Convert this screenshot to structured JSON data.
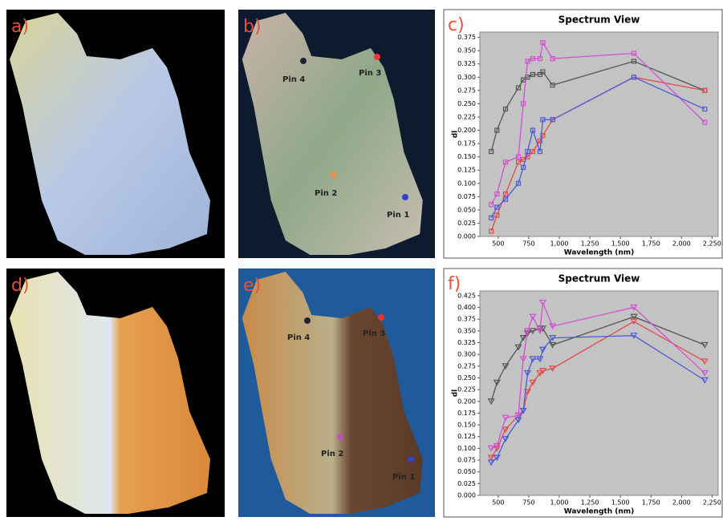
{
  "image_panels": [
    {
      "label": "a)"
    },
    {
      "label": "b)",
      "pins": [
        "Pin 4",
        "Pin 3",
        "Pin 2",
        "Pin 1"
      ]
    },
    {
      "label": "d)"
    },
    {
      "label": "e)",
      "pins": [
        "Pin 4",
        "Pin 3",
        "Pin 2",
        "Pin 1"
      ]
    }
  ],
  "chart_data": [
    {
      "type": "line",
      "label": "c)",
      "title": "Spectrum View",
      "x_label": "Wavelength (nm)",
      "y_label": "dl",
      "marker": "square",
      "grid": false,
      "x": [
        443,
        490,
        560,
        665,
        705,
        740,
        783,
        842,
        865,
        945,
        1610,
        2190
      ],
      "xlim": [
        350,
        2300
      ],
      "xticks": [
        500,
        750,
        {
          "value": 1000,
          "label": "1,000"
        },
        {
          "value": 1250,
          "label": "1,250"
        },
        {
          "value": 1500,
          "label": "1,500"
        },
        {
          "value": 1750,
          "label": "1,750"
        },
        {
          "value": 2000,
          "label": "2,000"
        },
        {
          "value": 2250,
          "label": "2,250"
        }
      ],
      "ylim": [
        0,
        0.385
      ],
      "yticks": [
        {
          "value": 0,
          "label": "0.000"
        },
        {
          "value": 0.025,
          "label": "0.025"
        },
        {
          "value": 0.05,
          "label": "0.050"
        },
        {
          "value": 0.075,
          "label": "0.075"
        },
        {
          "value": 0.1,
          "label": "0.100"
        },
        {
          "value": 0.125,
          "label": "0.125"
        },
        {
          "value": 0.15,
          "label": "0.150"
        },
        {
          "value": 0.175,
          "label": "0.175"
        },
        {
          "value": 0.2,
          "label": "0.200"
        },
        {
          "value": 0.225,
          "label": "0.225"
        },
        {
          "value": 0.25,
          "label": "0.250"
        },
        {
          "value": 0.275,
          "label": "0.275"
        },
        {
          "value": 0.3,
          "label": "0.300"
        },
        {
          "value": 0.325,
          "label": "0.325"
        },
        {
          "value": 0.35,
          "label": "0.350"
        },
        {
          "value": 0.375,
          "label": "0.375"
        }
      ],
      "series": [
        {
          "color": "#555555",
          "values": [
            0.16,
            0.2,
            0.24,
            0.28,
            0.295,
            0.3,
            0.305,
            0.305,
            0.31,
            0.285,
            0.33,
            0.275
          ]
        },
        {
          "color": "#e24a4a",
          "values": [
            0.01,
            0.04,
            0.08,
            0.14,
            0.145,
            0.15,
            0.16,
            0.18,
            0.19,
            0.22,
            0.3,
            0.275
          ]
        },
        {
          "color": "#d24fd2",
          "values": [
            0.06,
            0.08,
            0.14,
            0.15,
            0.25,
            0.33,
            0.335,
            0.335,
            0.365,
            0.335,
            0.345,
            0.215
          ]
        },
        {
          "color": "#4a5ad8",
          "values": [
            0.035,
            0.055,
            0.07,
            0.1,
            0.13,
            0.16,
            0.2,
            0.16,
            0.22,
            0.22,
            0.3,
            0.24
          ]
        }
      ]
    },
    {
      "type": "line",
      "label": "f)",
      "title": "Spectrum View",
      "x_label": "Wavelength (nm)",
      "y_label": "dl",
      "marker": "triangle-down",
      "grid": false,
      "x": [
        443,
        490,
        560,
        665,
        705,
        740,
        783,
        842,
        865,
        945,
        1610,
        2190
      ],
      "xlim": [
        350,
        2300
      ],
      "xticks": [
        500,
        750,
        {
          "value": 1000,
          "label": "1,000"
        },
        {
          "value": 1250,
          "label": "1,250"
        },
        {
          "value": 1500,
          "label": "1,500"
        },
        {
          "value": 1750,
          "label": "1,750"
        },
        {
          "value": 2000,
          "label": "2,000"
        },
        {
          "value": 2250,
          "label": "2,250"
        }
      ],
      "ylim": [
        0,
        0.435
      ],
      "yticks": [
        {
          "value": 0,
          "label": "0.000"
        },
        {
          "value": 0.025,
          "label": "0.025"
        },
        {
          "value": 0.05,
          "label": "0.050"
        },
        {
          "value": 0.075,
          "label": "0.075"
        },
        {
          "value": 0.1,
          "label": "0.100"
        },
        {
          "value": 0.125,
          "label": "0.125"
        },
        {
          "value": 0.15,
          "label": "0.150"
        },
        {
          "value": 0.175,
          "label": "0.175"
        },
        {
          "value": 0.2,
          "label": "0.200"
        },
        {
          "value": 0.225,
          "label": "0.225"
        },
        {
          "value": 0.25,
          "label": "0.250"
        },
        {
          "value": 0.275,
          "label": "0.275"
        },
        {
          "value": 0.3,
          "label": "0.300"
        },
        {
          "value": 0.325,
          "label": "0.325"
        },
        {
          "value": 0.35,
          "label": "0.350"
        },
        {
          "value": 0.375,
          "label": "0.375"
        },
        {
          "value": 0.4,
          "label": "0.400"
        },
        {
          "value": 0.425,
          "label": "0.425"
        }
      ],
      "series": [
        {
          "color": "#555555",
          "values": [
            0.2,
            0.24,
            0.275,
            0.315,
            0.335,
            0.345,
            0.35,
            0.355,
            0.355,
            0.32,
            0.38,
            0.32
          ]
        },
        {
          "color": "#e24a4a",
          "values": [
            0.08,
            0.1,
            0.14,
            0.17,
            0.18,
            0.22,
            0.24,
            0.26,
            0.265,
            0.27,
            0.37,
            0.285
          ]
        },
        {
          "color": "#d24fd2",
          "values": [
            0.1,
            0.105,
            0.165,
            0.17,
            0.29,
            0.35,
            0.38,
            0.35,
            0.41,
            0.36,
            0.4,
            0.26
          ]
        },
        {
          "color": "#4a5ad8",
          "values": [
            0.07,
            0.08,
            0.12,
            0.16,
            0.18,
            0.26,
            0.29,
            0.29,
            0.31,
            0.335,
            0.34,
            0.245
          ]
        }
      ]
    }
  ]
}
